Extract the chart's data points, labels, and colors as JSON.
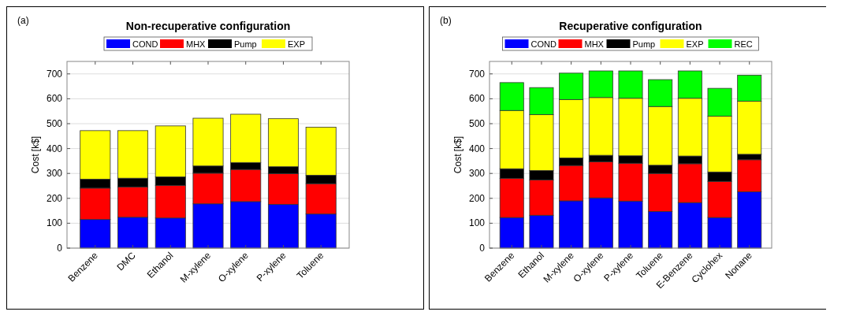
{
  "chart_data": [
    {
      "type": "bar",
      "title": "Non-recuperative configuration",
      "ylabel": "Cost [k$]",
      "annotations": [
        "(a)"
      ],
      "stacked": true,
      "legend": "top",
      "grid": true,
      "categories": [
        "Benzene",
        "DMC",
        "Ethanol",
        "M-xylene",
        "O-xylene",
        "P-xylene",
        "Toluene"
      ],
      "ylim": [
        0,
        750
      ],
      "yticks": [
        0,
        100,
        200,
        300,
        400,
        500,
        600,
        700
      ],
      "series": [
        {
          "name": "COND",
          "color": "#0000ff",
          "values": [
            115,
            124,
            121,
            178,
            187,
            176,
            137
          ]
        },
        {
          "name": "MHX",
          "color": "#ff0000",
          "values": [
            126,
            122,
            131,
            123,
            129,
            123,
            122
          ]
        },
        {
          "name": "Pump",
          "color": "#000000",
          "values": [
            36,
            35,
            34,
            29,
            28,
            28,
            34
          ]
        },
        {
          "name": "EXP",
          "color": "#ffff00",
          "values": [
            195,
            191,
            205,
            192,
            194,
            193,
            193
          ]
        }
      ]
    },
    {
      "type": "bar",
      "title": "Recuperative configuration",
      "ylabel": "Cost [k$]",
      "annotations": [
        "(b)"
      ],
      "stacked": true,
      "legend": "top",
      "grid": true,
      "categories": [
        "Benzene",
        "Ethanol",
        "M-xylene",
        "O-xylene",
        "P-xylene",
        "Toluene",
        "E-Benzene",
        "Cyclohex",
        "Nonane"
      ],
      "ylim": [
        0,
        750
      ],
      "yticks": [
        0,
        100,
        200,
        300,
        400,
        500,
        600,
        700
      ],
      "series": [
        {
          "name": "COND",
          "color": "#0000ff",
          "values": [
            123,
            132,
            190,
            202,
            189,
            147,
            183,
            123,
            226
          ]
        },
        {
          "name": "MHX",
          "color": "#ff0000",
          "values": [
            157,
            142,
            142,
            145,
            152,
            153,
            156,
            145,
            129
          ]
        },
        {
          "name": "Pump",
          "color": "#000000",
          "values": [
            39,
            38,
            30,
            26,
            30,
            33,
            31,
            38,
            22
          ]
        },
        {
          "name": "EXP",
          "color": "#ffff00",
          "values": [
            234,
            224,
            235,
            232,
            231,
            236,
            232,
            224,
            213
          ]
        },
        {
          "name": "REC",
          "color": "#00ff00",
          "values": [
            112,
            109,
            106,
            107,
            110,
            108,
            110,
            112,
            105
          ]
        }
      ]
    }
  ]
}
